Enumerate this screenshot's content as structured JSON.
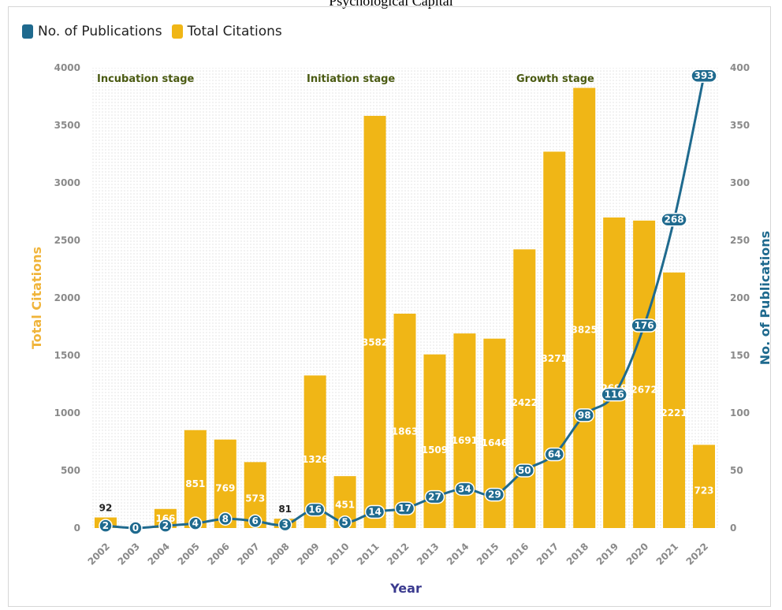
{
  "title": "Psychological Capital",
  "colors": {
    "publications": "#1f6a8e",
    "citations": "#f0b616",
    "citations_axis": "#f0b43a",
    "year_axis": "#3b3b8f"
  },
  "legend": [
    {
      "name": "No. of Publications",
      "color": "#1f6a8e"
    },
    {
      "name": "Total Citations",
      "color": "#f0b616"
    }
  ],
  "chart_data": {
    "type": "bar",
    "categories": [
      "2002",
      "2003",
      "2004",
      "2005",
      "2006",
      "2007",
      "2008",
      "2009",
      "2010",
      "2011",
      "2012",
      "2013",
      "2014",
      "2015",
      "2016",
      "2017",
      "2018",
      "2019",
      "2020",
      "2021",
      "2022"
    ],
    "series": [
      {
        "name": "Total Citations",
        "type": "bar",
        "axis": "left",
        "values": [
          92,
          0,
          166,
          851,
          769,
          573,
          81,
          1326,
          451,
          3582,
          1863,
          1509,
          1691,
          1646,
          2422,
          3271,
          3825,
          2699,
          2672,
          2221,
          723
        ]
      },
      {
        "name": "No. of Publications",
        "type": "line",
        "axis": "right",
        "values": [
          2,
          0,
          2,
          4,
          8,
          6,
          3,
          16,
          5,
          14,
          17,
          27,
          34,
          29,
          50,
          64,
          98,
          116,
          176,
          268,
          393
        ]
      }
    ],
    "xlabel": "Year",
    "ylabel": "Total Citations",
    "y2label": "No. of Publications",
    "ylim": [
      0,
      4000
    ],
    "y2lim": [
      0,
      400
    ],
    "yticks": [
      0,
      500,
      1000,
      1500,
      2000,
      2500,
      3000,
      3500,
      4000
    ],
    "y2ticks": [
      0,
      50,
      100,
      150,
      200,
      250,
      300,
      350,
      400
    ],
    "annotations": [
      "Incubation stage",
      "Initiation stage",
      "Growth stage"
    ],
    "grid": "dotted",
    "legend_position": "top-left"
  }
}
